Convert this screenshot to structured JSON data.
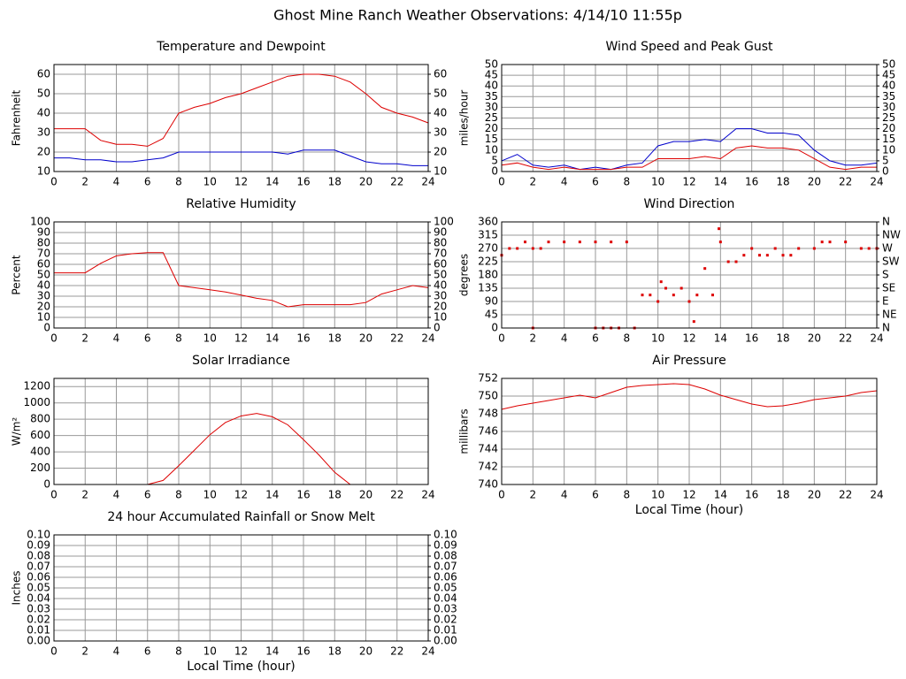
{
  "title": "Ghost Mine Ranch Weather Observations: 4/14/10 11:55p",
  "chart_data": [
    {
      "type": "line",
      "title": "Temperature and Dewpoint",
      "ylabel": "Fahrenheit",
      "x": [
        0,
        1,
        2,
        3,
        4,
        5,
        6,
        7,
        8,
        9,
        10,
        11,
        12,
        13,
        14,
        15,
        16,
        17,
        18,
        19,
        20,
        21,
        22,
        23,
        24
      ],
      "series": [
        {
          "color": "#dd0000",
          "values": [
            32,
            32,
            32,
            26,
            24,
            24,
            23,
            27,
            40,
            43,
            45,
            48,
            50,
            53,
            56,
            59,
            60,
            60,
            59,
            56,
            50,
            43,
            40,
            38,
            35
          ]
        },
        {
          "color": "#0000cc",
          "values": [
            17,
            17,
            16,
            16,
            15,
            15,
            16,
            17,
            20,
            20,
            20,
            20,
            20,
            20,
            20,
            19,
            21,
            21,
            21,
            18,
            15,
            14,
            14,
            13,
            13
          ]
        }
      ],
      "xlim": [
        0,
        24
      ],
      "xticks": [
        0,
        2,
        4,
        6,
        8,
        10,
        12,
        14,
        16,
        18,
        20,
        22,
        24
      ],
      "ylim": [
        10,
        65
      ],
      "yticks": [
        10,
        20,
        30,
        40,
        50,
        60
      ],
      "y2lim": [
        10,
        65
      ],
      "y2ticks": [
        10,
        20,
        30,
        40,
        50,
        60
      ],
      "grid": true
    },
    {
      "type": "line",
      "title": "Wind Speed and Peak Gust",
      "ylabel": "miles/hour",
      "x": [
        0,
        1,
        2,
        3,
        4,
        5,
        6,
        7,
        8,
        9,
        10,
        11,
        12,
        13,
        14,
        15,
        16,
        17,
        18,
        19,
        20,
        21,
        22,
        23,
        24
      ],
      "series": [
        {
          "color": "#0000cc",
          "values": [
            5,
            8,
            3,
            2,
            3,
            1,
            2,
            1,
            3,
            4,
            12,
            14,
            14,
            15,
            14,
            20,
            20,
            18,
            18,
            17,
            10,
            5,
            3,
            3,
            4
          ]
        },
        {
          "color": "#dd0000",
          "values": [
            3,
            4,
            2,
            1,
            2,
            1,
            1,
            1,
            2,
            2,
            6,
            6,
            6,
            7,
            6,
            11,
            12,
            11,
            11,
            10,
            6,
            2,
            1,
            2,
            2
          ]
        }
      ],
      "xlim": [
        0,
        24
      ],
      "xticks": [
        0,
        2,
        4,
        6,
        8,
        10,
        12,
        14,
        16,
        18,
        20,
        22,
        24
      ],
      "ylim": [
        0,
        50
      ],
      "yticks": [
        0,
        5,
        10,
        15,
        20,
        25,
        30,
        35,
        40,
        45,
        50
      ],
      "y2lim": [
        0,
        50
      ],
      "y2ticks": [
        0,
        5,
        10,
        15,
        20,
        25,
        30,
        35,
        40,
        45,
        50
      ],
      "grid": true
    },
    {
      "type": "line",
      "title": "Relative Humidity",
      "ylabel": "Percent",
      "x": [
        0,
        1,
        2,
        3,
        4,
        5,
        6,
        7,
        8,
        9,
        10,
        11,
        12,
        13,
        14,
        15,
        16,
        17,
        18,
        19,
        20,
        21,
        22,
        23,
        24
      ],
      "series": [
        {
          "color": "#dd0000",
          "values": [
            52,
            52,
            52,
            61,
            68,
            70,
            71,
            71,
            40,
            38,
            36,
            34,
            31,
            28,
            26,
            20,
            22,
            22,
            22,
            22,
            24,
            32,
            36,
            40,
            38
          ]
        }
      ],
      "xlim": [
        0,
        24
      ],
      "xticks": [
        0,
        2,
        4,
        6,
        8,
        10,
        12,
        14,
        16,
        18,
        20,
        22,
        24
      ],
      "ylim": [
        0,
        100
      ],
      "yticks": [
        0,
        10,
        20,
        30,
        40,
        50,
        60,
        70,
        80,
        90,
        100
      ],
      "y2lim": [
        0,
        100
      ],
      "y2ticks": [
        0,
        10,
        20,
        30,
        40,
        50,
        60,
        70,
        80,
        90,
        100
      ],
      "grid": true
    },
    {
      "type": "scatter",
      "title": "Wind Direction",
      "ylabel": "degrees",
      "x": [
        0,
        0.5,
        1,
        1.5,
        2,
        2.5,
        3,
        4,
        5,
        6,
        7,
        8,
        8.5,
        9,
        9.5,
        10,
        10.2,
        10.5,
        11,
        11.5,
        12,
        12.3,
        12.5,
        13,
        13.5,
        13.9,
        14,
        14.5,
        15,
        15.5,
        16,
        16.5,
        17,
        17.5,
        18,
        18.5,
        19,
        20,
        20.5,
        21,
        22,
        23,
        23.5,
        24,
        2,
        6,
        6.5,
        7,
        7.5
      ],
      "series": [
        {
          "color": "#dd0000",
          "values": [
            247,
            270,
            270,
            292,
            270,
            270,
            292,
            292,
            292,
            292,
            292,
            292,
            0,
            112,
            112,
            90,
            157,
            135,
            112,
            135,
            90,
            22,
            112,
            202,
            112,
            337,
            292,
            225,
            225,
            247,
            270,
            247,
            247,
            270,
            247,
            247,
            270,
            270,
            292,
            292,
            292,
            270,
            270,
            270,
            0,
            0,
            0,
            0,
            0
          ]
        }
      ],
      "xlim": [
        0,
        24
      ],
      "xticks": [
        0,
        2,
        4,
        6,
        8,
        10,
        12,
        14,
        16,
        18,
        20,
        22,
        24
      ],
      "ylim": [
        0,
        360
      ],
      "yticks": [
        0,
        45,
        90,
        135,
        180,
        225,
        270,
        315,
        360
      ],
      "y2lim": [
        0,
        360
      ],
      "y2ticks": [
        {
          "value": 0,
          "label": "N"
        },
        {
          "value": 45,
          "label": "NE"
        },
        {
          "value": 90,
          "label": "E"
        },
        {
          "value": 135,
          "label": "SE"
        },
        {
          "value": 180,
          "label": "S"
        },
        {
          "value": 225,
          "label": "SW"
        },
        {
          "value": 270,
          "label": "W"
        },
        {
          "value": 315,
          "label": "NW"
        },
        {
          "value": 360,
          "label": "N"
        }
      ],
      "grid": true
    },
    {
      "type": "line",
      "title": "Solar Irradiance",
      "ylabel": "W/m²",
      "x": [
        0,
        1,
        2,
        3,
        4,
        5,
        6,
        7,
        8,
        9,
        10,
        11,
        12,
        13,
        14,
        15,
        16,
        17,
        18,
        19,
        20,
        21,
        22,
        23,
        24
      ],
      "series": [
        {
          "color": "#dd0000",
          "values": [
            0,
            0,
            0,
            0,
            0,
            0,
            0,
            50,
            230,
            420,
            610,
            760,
            840,
            870,
            830,
            730,
            550,
            360,
            150,
            0,
            0,
            0,
            0,
            0,
            0
          ]
        }
      ],
      "xlim": [
        0,
        24
      ],
      "xticks": [
        0,
        2,
        4,
        6,
        8,
        10,
        12,
        14,
        16,
        18,
        20,
        22,
        24
      ],
      "ylim": [
        0,
        1300
      ],
      "yticks": [
        0,
        200,
        400,
        600,
        800,
        1000,
        1200
      ],
      "grid": true
    },
    {
      "type": "line",
      "title": "Air Pressure",
      "ylabel": "millibars",
      "xlabel": "Local Time (hour)",
      "x": [
        0,
        1,
        2,
        3,
        4,
        5,
        6,
        7,
        8,
        9,
        10,
        11,
        12,
        13,
        14,
        15,
        16,
        17,
        18,
        19,
        20,
        21,
        22,
        23,
        24
      ],
      "series": [
        {
          "color": "#dd0000",
          "values": [
            748.5,
            748.9,
            749.2,
            749.5,
            749.8,
            750.1,
            749.8,
            750.4,
            751.0,
            751.2,
            751.3,
            751.4,
            751.3,
            750.8,
            750.1,
            749.6,
            749.1,
            748.8,
            748.9,
            749.2,
            749.6,
            749.8,
            750.0,
            750.4,
            750.6
          ]
        }
      ],
      "xlim": [
        0,
        24
      ],
      "xticks": [
        0,
        2,
        4,
        6,
        8,
        10,
        12,
        14,
        16,
        18,
        20,
        22,
        24
      ],
      "ylim": [
        740,
        752
      ],
      "yticks": [
        740,
        742,
        744,
        746,
        748,
        750,
        752
      ],
      "grid": true
    },
    {
      "type": "line",
      "title": "24 hour Accumulated Rainfall or Snow Melt",
      "ylabel": "Inches",
      "xlabel": "Local Time (hour)",
      "x": [
        0,
        1,
        2,
        3,
        4,
        5,
        6,
        7,
        8,
        9,
        10,
        11,
        12,
        13,
        14,
        15,
        16,
        17,
        18,
        19,
        20,
        21,
        22,
        23,
        24
      ],
      "series": [
        {
          "color": "#dd0000",
          "values": [
            0,
            0,
            0,
            0,
            0,
            0,
            0,
            0,
            0,
            0,
            0,
            0,
            0,
            0,
            0,
            0,
            0,
            0,
            0,
            0,
            0,
            0,
            0,
            0,
            0
          ]
        }
      ],
      "xlim": [
        0,
        24
      ],
      "xticks": [
        0,
        2,
        4,
        6,
        8,
        10,
        12,
        14,
        16,
        18,
        20,
        22,
        24
      ],
      "ylim": [
        0,
        0.1
      ],
      "yticks": [
        {
          "value": 0,
          "label": "0.00"
        },
        {
          "value": 0.01,
          "label": "0.01"
        },
        {
          "value": 0.02,
          "label": "0.02"
        },
        {
          "value": 0.03,
          "label": "0.03"
        },
        {
          "value": 0.04,
          "label": "0.04"
        },
        {
          "value": 0.05,
          "label": "0.05"
        },
        {
          "value": 0.06,
          "label": "0.06"
        },
        {
          "value": 0.07,
          "label": "0.07"
        },
        {
          "value": 0.08,
          "label": "0.08"
        },
        {
          "value": 0.09,
          "label": "0.09"
        },
        {
          "value": 0.1,
          "label": "0.10"
        }
      ],
      "y2lim": [
        0,
        0.1
      ],
      "y2ticks": [
        {
          "value": 0,
          "label": "0.00"
        },
        {
          "value": 0.01,
          "label": "0.01"
        },
        {
          "value": 0.02,
          "label": "0.02"
        },
        {
          "value": 0.03,
          "label": "0.03"
        },
        {
          "value": 0.04,
          "label": "0.04"
        },
        {
          "value": 0.05,
          "label": "0.05"
        },
        {
          "value": 0.06,
          "label": "0.06"
        },
        {
          "value": 0.07,
          "label": "0.07"
        },
        {
          "value": 0.08,
          "label": "0.08"
        },
        {
          "value": 0.09,
          "label": "0.09"
        },
        {
          "value": 0.1,
          "label": "0.10"
        }
      ],
      "grid": true
    }
  ]
}
